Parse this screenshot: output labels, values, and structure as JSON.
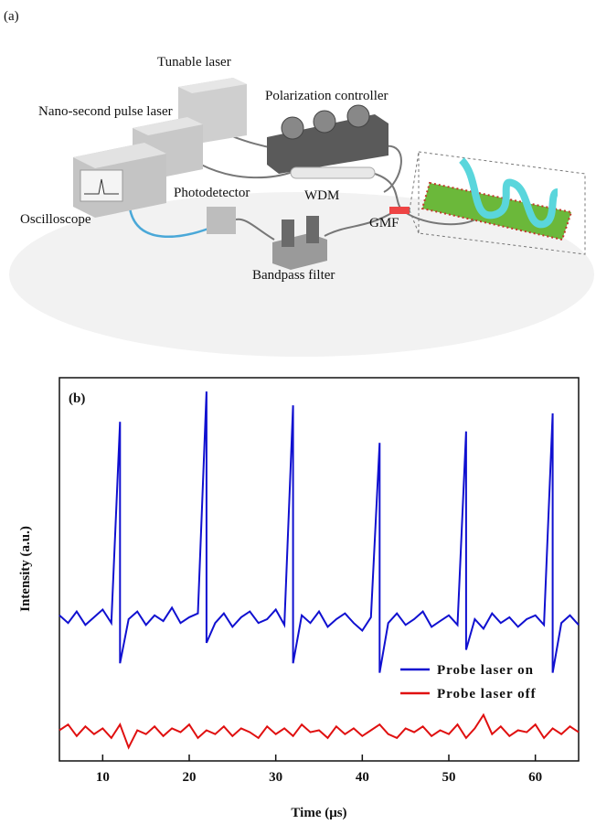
{
  "diagram": {
    "panel_label": "(a)",
    "labels": {
      "tunable_laser": "Tunable laser",
      "polarization_controller": "Polarization controller",
      "pulse_laser": "Nano-second pulse laser",
      "oscilloscope": "Oscilloscope",
      "photodetector": "Photodetector",
      "wdm": "WDM",
      "gmf": "GMF",
      "bandpass_filter": "Bandpass filter"
    }
  },
  "chart_data": {
    "type": "line",
    "annotations": [
      "(b)"
    ],
    "x_label": "Time (μs)",
    "y_label": "Intensity (a.u.)",
    "xlim": [
      5,
      65
    ],
    "xticks": [
      10,
      20,
      30,
      40,
      50,
      60
    ],
    "ylim": [
      0,
      10
    ],
    "legend": "lower right",
    "series": [
      {
        "name": "Probe laser on",
        "color": "#1010d0",
        "x": [
          5,
          6,
          7,
          8,
          9,
          10,
          11,
          12,
          12,
          13,
          14,
          15,
          16,
          17,
          18,
          19,
          20,
          21,
          22,
          22,
          23,
          24,
          25,
          26,
          27,
          28,
          29,
          30,
          31,
          32,
          32,
          33,
          34,
          35,
          36,
          37,
          38,
          39,
          40,
          41,
          42,
          42,
          43,
          44,
          45,
          46,
          47,
          48,
          49,
          50,
          51,
          52,
          52,
          53,
          54,
          55,
          56,
          57,
          58,
          59,
          60,
          61,
          62,
          62,
          63,
          64,
          65
        ],
        "values": [
          3.8,
          3.6,
          3.9,
          3.55,
          3.75,
          3.95,
          3.6,
          8.85,
          2.55,
          3.7,
          3.9,
          3.55,
          3.8,
          3.65,
          4.0,
          3.6,
          3.75,
          3.85,
          9.64,
          3.08,
          3.6,
          3.85,
          3.5,
          3.75,
          3.9,
          3.6,
          3.7,
          3.95,
          3.55,
          9.28,
          2.55,
          3.8,
          3.6,
          3.9,
          3.5,
          3.7,
          3.85,
          3.6,
          3.4,
          3.75,
          8.3,
          2.3,
          3.6,
          3.85,
          3.55,
          3.7,
          3.9,
          3.5,
          3.65,
          3.8,
          3.55,
          8.6,
          2.9,
          3.7,
          3.45,
          3.85,
          3.6,
          3.75,
          3.5,
          3.7,
          3.8,
          3.55,
          9.07,
          2.3,
          3.6,
          3.8,
          3.55
        ]
      },
      {
        "name": "Probe laser off",
        "color": "#e01010",
        "x": [
          5,
          6,
          7,
          8,
          9,
          10,
          11,
          12,
          13,
          14,
          15,
          16,
          17,
          18,
          19,
          20,
          21,
          22,
          23,
          24,
          25,
          26,
          27,
          28,
          29,
          30,
          31,
          32,
          33,
          34,
          35,
          36,
          37,
          38,
          39,
          40,
          41,
          42,
          43,
          44,
          45,
          46,
          47,
          48,
          49,
          50,
          51,
          52,
          53,
          54,
          55,
          56,
          57,
          58,
          59,
          60,
          61,
          62,
          63,
          64,
          65
        ],
        "values": [
          0.8,
          0.95,
          0.65,
          0.9,
          0.7,
          0.85,
          0.6,
          0.95,
          0.35,
          0.8,
          0.7,
          0.9,
          0.65,
          0.85,
          0.75,
          0.95,
          0.6,
          0.8,
          0.7,
          0.9,
          0.65,
          0.85,
          0.75,
          0.6,
          0.9,
          0.7,
          0.85,
          0.65,
          0.95,
          0.75,
          0.8,
          0.6,
          0.9,
          0.7,
          0.85,
          0.65,
          0.8,
          0.95,
          0.7,
          0.6,
          0.85,
          0.75,
          0.9,
          0.65,
          0.8,
          0.7,
          0.95,
          0.6,
          0.85,
          1.2,
          0.7,
          0.9,
          0.65,
          0.8,
          0.75,
          0.95,
          0.6,
          0.85,
          0.7,
          0.9,
          0.75
        ]
      }
    ]
  }
}
